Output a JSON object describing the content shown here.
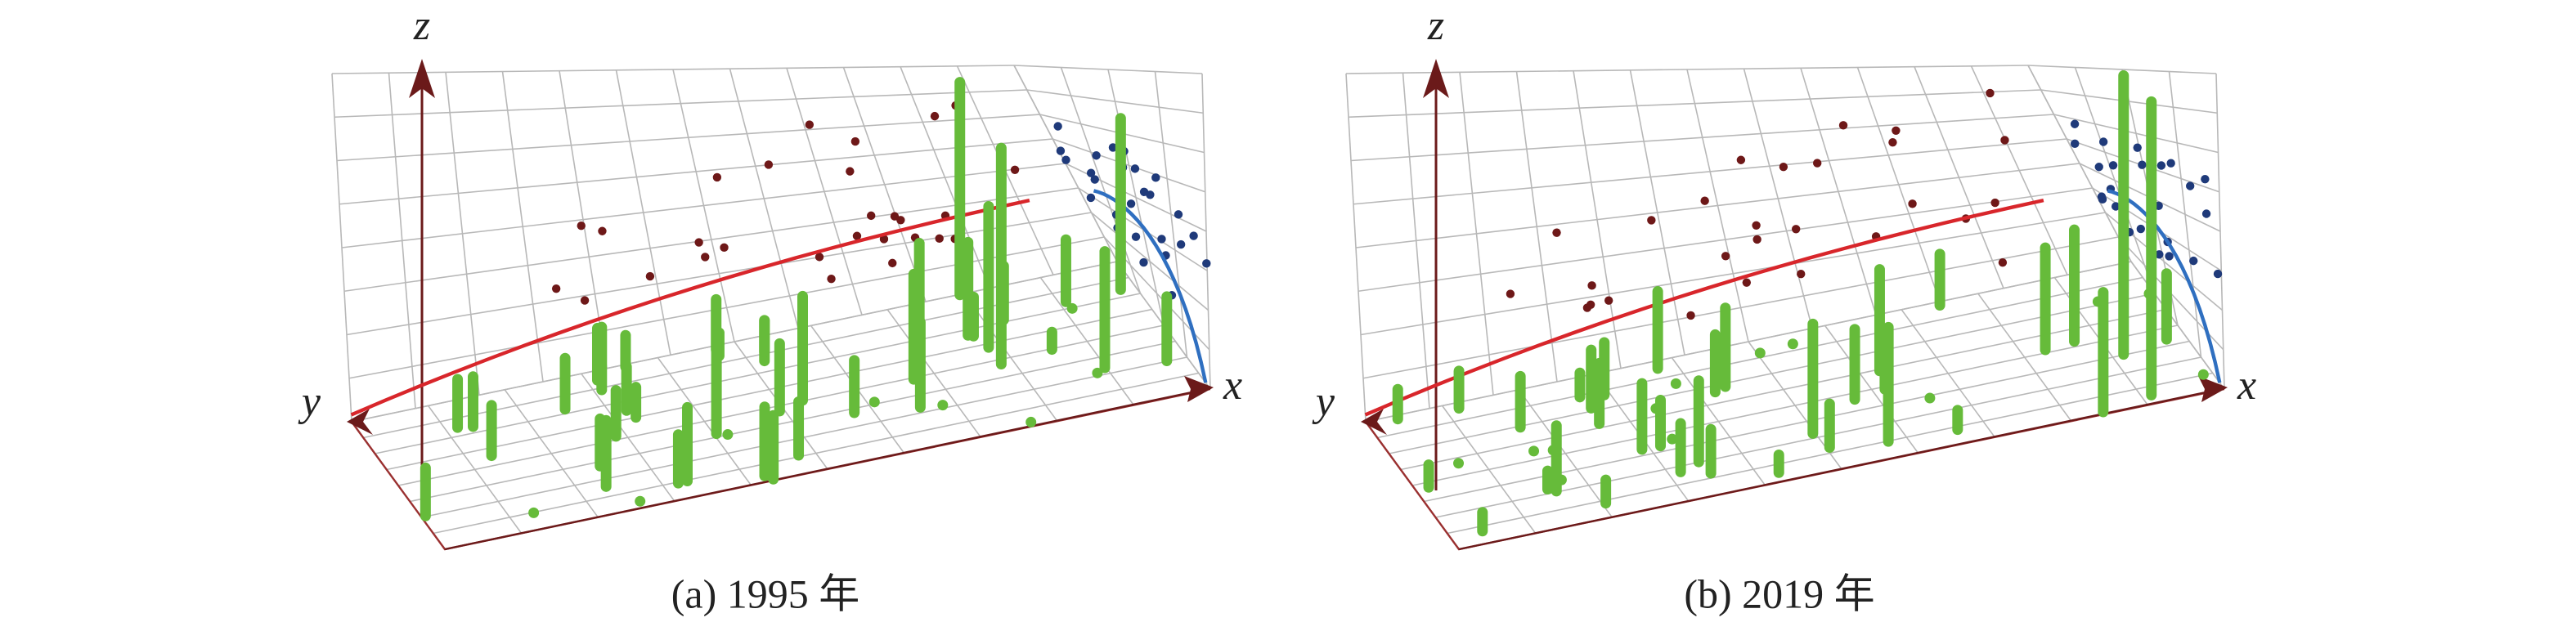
{
  "panels": [
    {
      "caption": "(a) 1995 年",
      "axes": {
        "x": "x",
        "y": "y",
        "z": "z"
      }
    },
    {
      "caption": "(b) 2019 年",
      "axes": {
        "x": "x",
        "y": "y",
        "z": "z"
      }
    }
  ]
}
